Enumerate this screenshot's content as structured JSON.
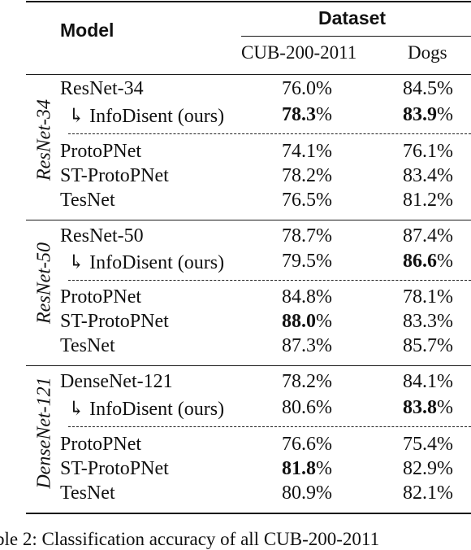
{
  "header": {
    "model_label": "Model",
    "dataset_label": "Dataset",
    "col1": "CUB-200-2011",
    "col2": "Dogs"
  },
  "groups": [
    {
      "label": "ResNet-34",
      "rows": [
        {
          "model": "ResNet-34",
          "cub": "76.0%",
          "dogs": "84.5%",
          "cub_bold": "",
          "cub_rest": "",
          "dogs_bold": "",
          "dogs_rest": ""
        },
        {
          "model": "↳ InfoDisent (ours)",
          "cub_bold": "78.3",
          "cub_rest": "%",
          "dogs_bold": "83.9",
          "dogs_rest": "%"
        },
        {
          "model": "ProtoPNet",
          "cub": "74.1%",
          "dogs": "76.1%"
        },
        {
          "model": "ST-ProtoPNet",
          "cub": "78.2%",
          "dogs": "83.4%"
        },
        {
          "model": "TesNet",
          "cub": "76.5%",
          "dogs": "81.2%"
        }
      ]
    },
    {
      "label": "ResNet-50",
      "rows": [
        {
          "model": "ResNet-50",
          "cub": "78.7%",
          "dogs": "87.4%"
        },
        {
          "model": "↳ InfoDisent (ours)",
          "cub": "79.5%",
          "dogs_bold": "86.6",
          "dogs_rest": "%"
        },
        {
          "model": "ProtoPNet",
          "cub": "84.8%",
          "dogs": "78.1%"
        },
        {
          "model": "ST-ProtoPNet",
          "cub_bold": "88.0",
          "cub_rest": "%",
          "dogs": "83.3%"
        },
        {
          "model": "TesNet",
          "cub": "87.3%",
          "dogs": "85.7%"
        }
      ]
    },
    {
      "label": "DenseNet-121",
      "rows": [
        {
          "model": "DenseNet-121",
          "cub": "78.2%",
          "dogs": "84.1%"
        },
        {
          "model": "↳ InfoDisent (ours)",
          "cub": "80.6%",
          "dogs_bold": "83.8",
          "dogs_rest": "%"
        },
        {
          "model": "ProtoPNet",
          "cub": "76.6%",
          "dogs": "75.4%"
        },
        {
          "model": "ST-ProtoPNet",
          "cub_bold": "81.8",
          "cub_rest": "%",
          "dogs": "82.9%"
        },
        {
          "model": "TesNet",
          "cub": "80.9%",
          "dogs": "82.1%"
        }
      ]
    }
  ],
  "caption": "ble 2: Classification accuracy of all CUB-200-2011"
}
